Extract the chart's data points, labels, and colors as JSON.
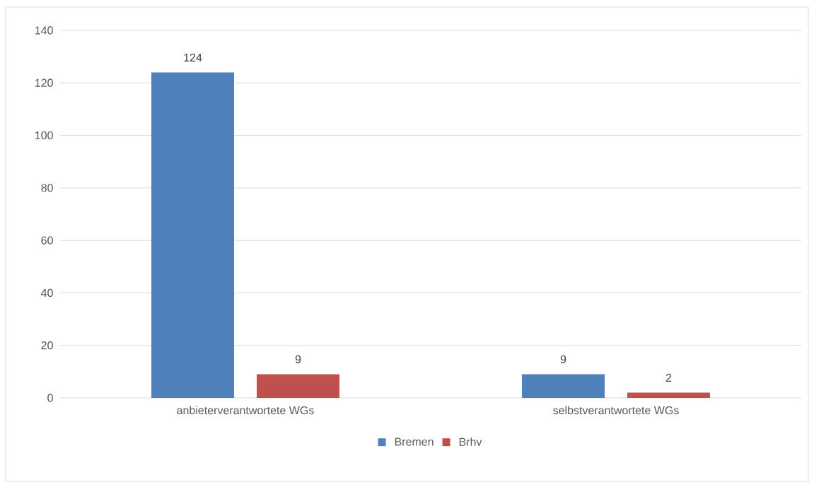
{
  "chart_data": {
    "type": "bar",
    "categories": [
      "anbieterverantwortete WGs",
      "selbstverantwortete WGs"
    ],
    "series": [
      {
        "name": "Bremen",
        "color": "#4f81bd",
        "values": [
          124,
          9
        ]
      },
      {
        "name": "Brhv",
        "color": "#c0504d",
        "values": [
          9,
          2
        ]
      }
    ],
    "ylim": [
      0,
      140
    ],
    "yticks": [
      0,
      20,
      40,
      60,
      80,
      100,
      120,
      140
    ],
    "grid": "y",
    "legend": "bottom",
    "data_labels": true
  }
}
